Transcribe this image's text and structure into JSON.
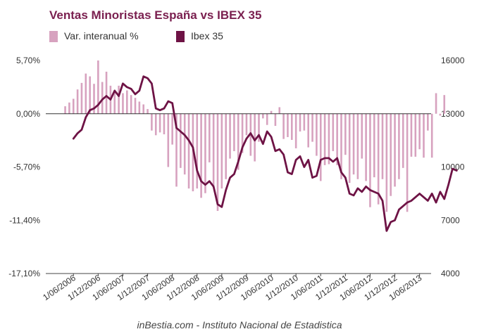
{
  "chart_data": {
    "type": "bar",
    "title": "Ventas Minoristas España vs IBEX 35",
    "legend_position": "top-left",
    "grid": false,
    "colors": {
      "bars": "#d7a2bf",
      "line": "#6e1345",
      "title": "#7a1f4f"
    },
    "y_left": {
      "label": "",
      "ticks": [
        "5,70%",
        "0,00%",
        "-5,70%",
        "-11,40%",
        "-17,10%"
      ],
      "range": [
        -17.1,
        5.7
      ]
    },
    "y_right": {
      "label": "",
      "ticks": [
        "16000",
        "13000",
        "10000",
        "7000",
        "4000"
      ],
      "range": [
        4000,
        16000
      ]
    },
    "x_ticks": [
      "1/06/2006",
      "1/12/2006",
      "1/06/2007",
      "1/12/2007",
      "1/06/2008",
      "1/12/2008",
      "1/06/2009",
      "1/12/2009",
      "1/06/2010",
      "1/12/2010",
      "1/06/2011",
      "1/12/2011",
      "1/06/2012",
      "1/12/2012",
      "1/06/2013"
    ],
    "x_start": "2006-01",
    "series": [
      {
        "name": "Var. interanual %",
        "kind": "bar",
        "axis": "left",
        "values": [
          0,
          0.8,
          1.2,
          1.6,
          2.6,
          3.3,
          4.3,
          4.0,
          3.2,
          5.7,
          3.4,
          4.5,
          3.0,
          2.4,
          3.0,
          2.2,
          2.5,
          2.0,
          1.7,
          1.3,
          1.0,
          0.5,
          -1.8,
          -2.3,
          -2.0,
          -2.2,
          -5.7,
          -3.3,
          -7.8,
          -5.8,
          -6.5,
          -8.0,
          -8.3,
          -8.0,
          -9.0,
          -8.5,
          -5.2,
          -7.8,
          -10.4,
          -8.0,
          -7.0,
          -4.8,
          -4.0,
          -6.0,
          -4.2,
          -2.3,
          -4.5,
          -5.1,
          -3.0,
          -0.5,
          -1.2,
          0.3,
          -1.3,
          0.7,
          -2.7,
          -2.5,
          -2.8,
          -3.7,
          -1.9,
          -1.8,
          -3.6,
          -3.0,
          -4.5,
          -7.2,
          -5.5,
          -5.4,
          -4.0,
          -5.5,
          -7.0,
          -4.4,
          -7.4,
          -6.5,
          -7.0,
          -4.8,
          -7.2,
          -10.0,
          -6.8,
          -9.7,
          -7.0,
          -10.5,
          -8.8,
          -7.8,
          -7.0,
          -5.8,
          -10.5,
          -4.6,
          -4.6,
          -3.8,
          -4.7,
          -1.8,
          -4.7,
          2.2,
          -0.2,
          2.0
        ],
        "x_offset_months": 2
      },
      {
        "name": "Ibex 35",
        "kind": "line",
        "axis": "right",
        "values": [
          11600,
          11900,
          12100,
          12800,
          13200,
          13300,
          13500,
          13800,
          14000,
          13800,
          14300,
          14000,
          14700,
          14500,
          14400,
          14100,
          14300,
          15100,
          15000,
          14700,
          13300,
          13200,
          13300,
          13700,
          13600,
          12200,
          12000,
          11800,
          11500,
          11100,
          9800,
          9200,
          9000,
          9200,
          8900,
          7900,
          7750,
          8700,
          9400,
          9600,
          10300,
          11100,
          11600,
          11900,
          11500,
          11800,
          11300,
          12000,
          11700,
          10900,
          11000,
          10700,
          9700,
          9600,
          10400,
          10600,
          10000,
          10400,
          9400,
          9500,
          10400,
          10500,
          10500,
          10300,
          10500,
          9700,
          9400,
          8500,
          8400,
          8800,
          8600,
          8900,
          8700,
          8600,
          8500,
          8100,
          6400,
          6900,
          7000,
          7600,
          7800,
          8000,
          8100,
          8300,
          8500,
          8300,
          8100,
          8500,
          8000,
          8600,
          8200,
          9000,
          9900,
          9800
        ],
        "x_offset_months": 5
      }
    ]
  },
  "source_note": "inBestia.com - Instituto Nacional de Estadistica"
}
